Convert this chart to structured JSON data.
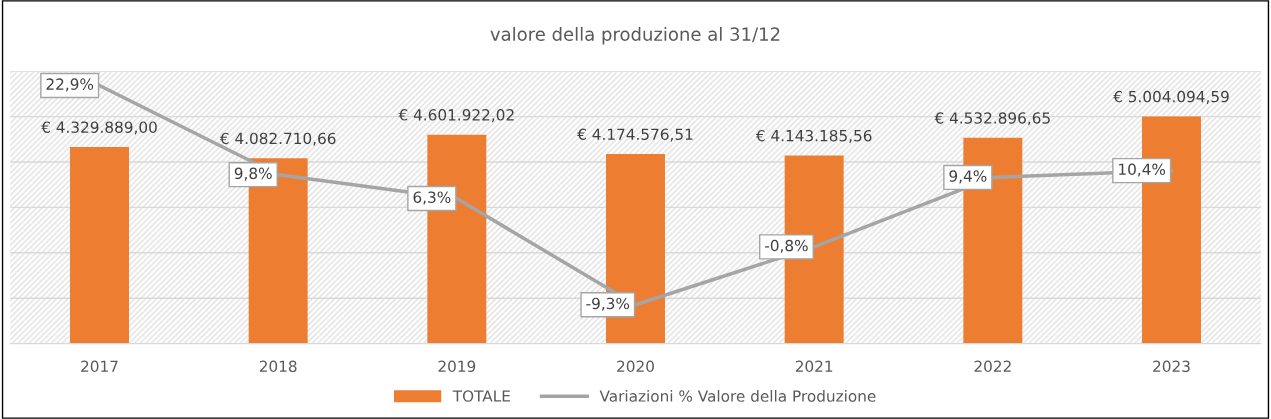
{
  "chart_data": {
    "type": "bar",
    "title": "valore della produzione al 31/12",
    "categories": [
      "2017",
      "2018",
      "2019",
      "2020",
      "2021",
      "2022",
      "2023"
    ],
    "series": [
      {
        "name": "TOTALE",
        "color": "#ed7d31",
        "values": [
          4329889.0,
          4082710.66,
          4601922.02,
          4174576.51,
          4143185.56,
          4532896.65,
          5004094.59
        ],
        "value_labels": [
          "€ 4.329.889,00",
          "€ 4.082.710,66",
          "€ 4.601.922,02",
          "€ 4.174.576,51",
          "€ 4.143.185,56",
          "€ 4.532.896,65",
          "€ 5.004.094,59"
        ]
      },
      {
        "name": "Variazioni % Valore della Produzione",
        "type": "line",
        "axis": "y2",
        "color": "#a5a5a5",
        "values": [
          22.9,
          9.8,
          6.3,
          -9.3,
          -0.8,
          9.4,
          10.4
        ],
        "value_labels": [
          "22,9%",
          "9,8%",
          "6,3%",
          "-9,3%",
          "-0,8%",
          "9,4%",
          "10,4%"
        ]
      }
    ],
    "ylim": [
      0,
      6000000
    ],
    "yticks": [
      {
        "value": 0,
        "label": null
      },
      {
        "value": 1000000,
        "label": null
      },
      {
        "value": 2000000,
        "label": null
      },
      {
        "value": 3000000,
        "label": null
      },
      {
        "value": 4000000,
        "label": null
      },
      {
        "value": 5000000,
        "label": null
      },
      {
        "value": 6000000,
        "label": null
      }
    ],
    "grid": "y",
    "legend": "bottom",
    "tick_labels": "x",
    "marker": "none",
    "line_style": "solid"
  }
}
